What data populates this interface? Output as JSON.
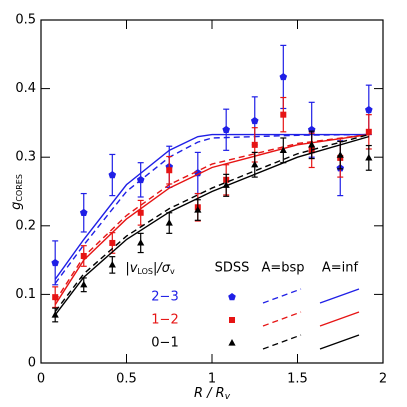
{
  "chart_data": {
    "type": "scatter",
    "x_label": [
      "R / R",
      "v"
    ],
    "y_label": [
      "g",
      "CORES"
    ],
    "xlim": [
      0,
      2
    ],
    "ylim": [
      0,
      0.5
    ],
    "xticks": [
      0,
      0.5,
      1,
      1.5,
      2
    ],
    "yticks": [
      0,
      0.1,
      0.2,
      0.3,
      0.4,
      0.5
    ],
    "x": [
      0.083,
      0.25,
      0.417,
      0.583,
      0.75,
      0.917,
      1.083,
      1.25,
      1.417,
      1.583,
      1.75,
      1.917
    ],
    "model_x": [
      0.083,
      0.25,
      0.5,
      0.75,
      0.917,
      1.0,
      1.5,
      1.917
    ],
    "legend_title": [
      "|v",
      "LOS",
      "|/σ",
      "v"
    ],
    "columns": [
      "SDSS",
      "A=bsp",
      "A=inf"
    ],
    "series": [
      {
        "name": "2−3",
        "color": "#1f1fe6",
        "marker": "pentagon",
        "values": [
          0.146,
          0.219,
          0.274,
          0.267,
          0.286,
          0.277,
          0.34,
          0.353,
          0.417,
          0.34,
          0.284,
          0.369
        ],
        "errors": [
          0.032,
          0.028,
          0.03,
          0.025,
          0.03,
          0.03,
          0.03,
          0.035,
          0.046,
          0.04,
          0.04,
          0.036
        ],
        "bsp": [
          0.116,
          0.172,
          0.25,
          0.3,
          0.322,
          0.328,
          0.332,
          0.333
        ],
        "inf": [
          0.122,
          0.18,
          0.26,
          0.31,
          0.33,
          0.333,
          0.333,
          0.333
        ]
      },
      {
        "name": "1−2",
        "color": "#e61414",
        "marker": "square",
        "values": [
          0.096,
          0.156,
          0.175,
          0.219,
          0.281,
          0.227,
          0.267,
          0.318,
          0.362,
          0.31,
          0.299,
          0.337
        ],
        "errors": [
          0.015,
          0.015,
          0.015,
          0.018,
          0.02,
          0.02,
          0.022,
          0.025,
          0.025,
          0.025,
          0.028,
          0.025
        ],
        "bsp": [
          0.09,
          0.155,
          0.215,
          0.26,
          0.28,
          0.29,
          0.32,
          0.333
        ],
        "inf": [
          0.085,
          0.15,
          0.21,
          0.255,
          0.275,
          0.285,
          0.318,
          0.333
        ]
      },
      {
        "name": "0−1",
        "color": "#000000",
        "marker": "triangle",
        "values": [
          0.07,
          0.114,
          0.143,
          0.175,
          0.204,
          0.223,
          0.259,
          0.289,
          0.31,
          0.318,
          0.303,
          0.299
        ],
        "errors": [
          0.01,
          0.01,
          0.012,
          0.014,
          0.015,
          0.015,
          0.016,
          0.018,
          0.018,
          0.02,
          0.02,
          0.018
        ],
        "bsp": [
          0.075,
          0.13,
          0.185,
          0.225,
          0.245,
          0.255,
          0.305,
          0.333
        ],
        "inf": [
          0.07,
          0.125,
          0.18,
          0.22,
          0.24,
          0.25,
          0.3,
          0.33
        ]
      }
    ]
  }
}
